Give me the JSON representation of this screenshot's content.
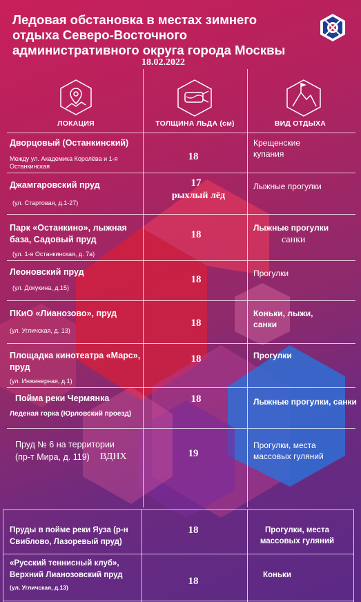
{
  "title_lines": [
    "Ледовая обстановка в местах зимнего",
    "отдыха Северо-Восточного",
    "административного округа города Москвы"
  ],
  "date": "18.02.2022",
  "headers": {
    "location": "ЛОКАЦИЯ",
    "thickness": "ТОЛЩИНА ЛЬДА (см)",
    "activity": "ВИД ОТДЫХА"
  },
  "rows": [
    {
      "name": "Дворцовый (Останкинский)",
      "address": "Между ул. Академика Королёва и 1-я Останкинская",
      "thickness": "18",
      "activity": "Крещенские купания"
    },
    {
      "name": "Джамгаровский пруд",
      "address": "(ул. Стартовая, д.1-27)",
      "thickness": "17",
      "note": "рыхлый лёд",
      "activity": "Лыжные прогулки"
    },
    {
      "name": "Парк «Останкино», лыжная база, Садовый пруд",
      "address": "(ул. 1-я Останкинская, д. 7а)",
      "thickness": "18",
      "activity": "Лыжные прогулки",
      "activity_note": "санки"
    },
    {
      "name": "Леоновский пруд",
      "address": "(ул. Докукина, д.15)",
      "thickness": "18",
      "activity": "Прогулки"
    },
    {
      "name": "ПКиО «Лианозово», пруд",
      "address": "(ул. Угличская, д. 13)",
      "thickness": "18",
      "activity": "Коньки, лыжи, санки"
    },
    {
      "name": "Площадка кинотеатра «Марс», пруд",
      "address": "(ул. Инженерная, д.1)",
      "thickness": "18",
      "activity": "Прогулки"
    },
    {
      "name": "Пойма реки Чермянка",
      "address": "Леденая горка (Юрловский проезд)",
      "thickness": "18",
      "activity": "Лыжные прогулки, санки"
    },
    {
      "name": "Пруд № 6 на территории",
      "address": "(пр-т Мира, д. 119)",
      "address_note": "ВДНХ",
      "thickness": "19",
      "activity": "Прогулки, места массовых гуляний"
    },
    {
      "name": "Пруды в пойме реки Яуза (р-н Свиблово, Лазоревый пруд)",
      "thickness": "18",
      "activity": "Прогулки, места массовых гуляний"
    },
    {
      "name": "«Русский теннисный клуб», Верхний Лианозовский пруд",
      "address": "(ул. Угличская, д.13)",
      "thickness": "18",
      "activity": "Коньки"
    }
  ],
  "colors": {
    "bg_top": "#c8205a",
    "bg_bottom": "#5a2a86",
    "accent_red": "#e0223a",
    "accent_blue": "#2f6fd6"
  }
}
